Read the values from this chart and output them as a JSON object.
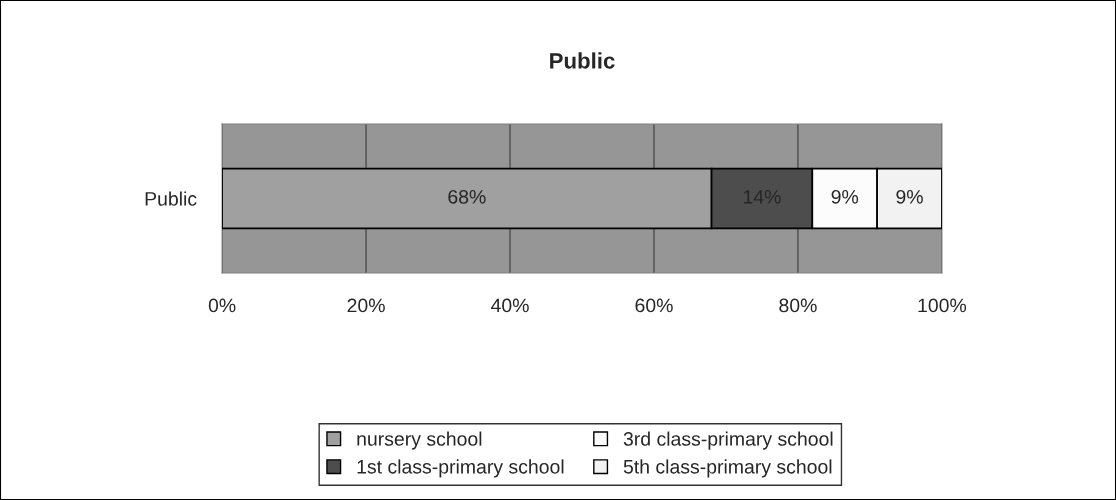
{
  "chart_data": {
    "type": "bar",
    "title": "Public",
    "orientation": "horizontal",
    "stacked": true,
    "categories": [
      "Public"
    ],
    "series": [
      {
        "name": "nursery school",
        "color": "#a0a0a0",
        "values": [
          68
        ],
        "value_labels": [
          "68%"
        ]
      },
      {
        "name": "1st class-primary school",
        "color": "#4d4d4d",
        "values": [
          14
        ],
        "value_labels": [
          "14%"
        ]
      },
      {
        "name": "3rd class-primary school",
        "color": "#fcfcfc",
        "values": [
          9
        ],
        "value_labels": [
          "9%"
        ]
      },
      {
        "name": "5th class-primary school",
        "color": "#f2f2f2",
        "values": [
          9
        ],
        "value_labels": [
          "9%"
        ]
      }
    ],
    "xlim": [
      0,
      100
    ],
    "xticks": [
      {
        "value": 0,
        "label": "0%"
      },
      {
        "value": 20,
        "label": "20%"
      },
      {
        "value": 40,
        "label": "40%"
      },
      {
        "value": 60,
        "label": "60%"
      },
      {
        "value": 80,
        "label": "80%"
      },
      {
        "value": 100,
        "label": "100%"
      }
    ],
    "grid": "x",
    "legend": "bottom"
  }
}
